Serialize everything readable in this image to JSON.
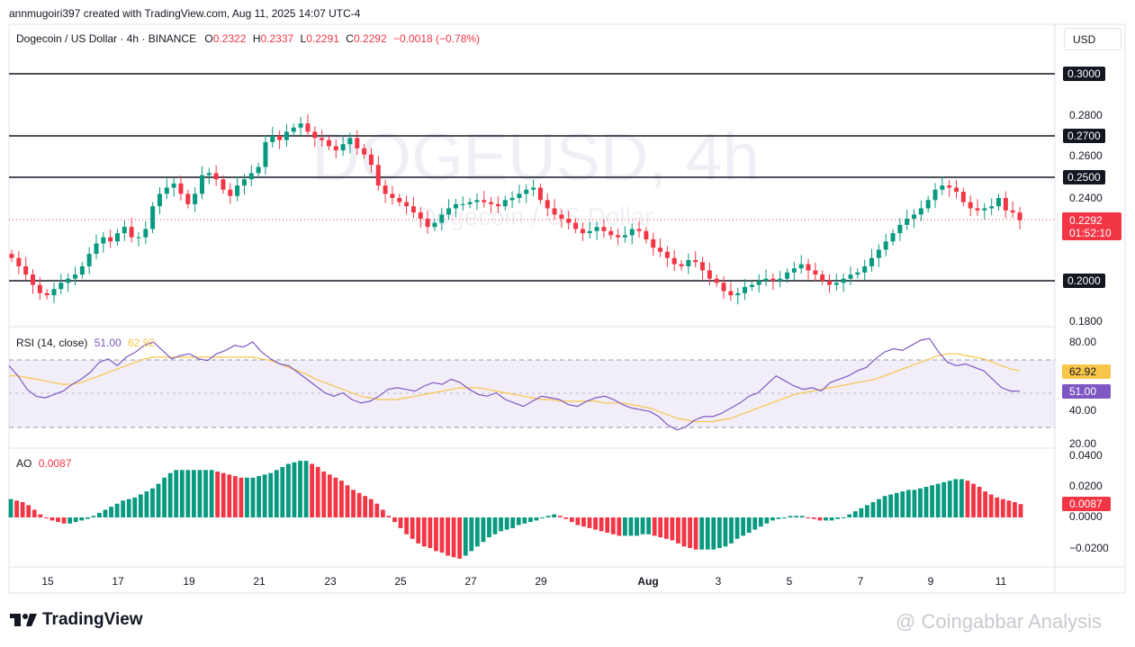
{
  "header": {
    "attribution": "annmugoiri397 created with TradingView.com, Aug 11, 2025 14:07 UTC-4",
    "symbol": "Dogecoin / US Dollar · 4h · BINANCE",
    "o_label": "O",
    "o_value": "0.2322",
    "h_label": "H",
    "h_value": "0.2337",
    "l_label": "L",
    "l_value": "0.2291",
    "c_label": "C",
    "c_value": "0.2292",
    "change": "−0.0018 (−0.78%)"
  },
  "currency_button": "USD",
  "watermark": {
    "big": "DOGEUSD, 4h",
    "small": "Dogecoin / US Dollar"
  },
  "price_axis": {
    "ticks": [
      "0.2800",
      "0.2600",
      "0.2400",
      "0.1800"
    ],
    "levels": [
      "0.3000",
      "0.2700",
      "0.2500",
      "0.2000"
    ],
    "last_price": "0.2292",
    "countdown": "01:52:10"
  },
  "rsi": {
    "label": "RSI (14, close)",
    "value": "51.00",
    "ma_value": "62.92",
    "ticks": [
      "80.00",
      "40.00",
      "20.00"
    ]
  },
  "ao": {
    "label": "AO",
    "value": "0.0087",
    "ticks": [
      "0.0400",
      "0.0200",
      "0.0000",
      "−0.0200"
    ]
  },
  "time_axis": [
    "15",
    "17",
    "19",
    "21",
    "23",
    "25",
    "27",
    "29",
    "Aug",
    "3",
    "5",
    "7",
    "9",
    "11"
  ],
  "branding": {
    "logo": "TradingView",
    "watermark_text": "@ Coingabbar Analysis"
  },
  "colors": {
    "up": "#089981",
    "down": "#f23645",
    "rsi_line": "#7e57c2",
    "rsi_ma": "#f7c548",
    "level_line": "#131722"
  },
  "chart_data": {
    "type": "candlestick",
    "price_levels": [
      0.3,
      0.27,
      0.25,
      0.2
    ],
    "price_range": [
      0.175,
      0.31
    ],
    "close_path": [
      0.211,
      0.207,
      0.203,
      0.198,
      0.194,
      0.193,
      0.196,
      0.199,
      0.201,
      0.203,
      0.207,
      0.213,
      0.218,
      0.221,
      0.219,
      0.223,
      0.226,
      0.221,
      0.221,
      0.225,
      0.236,
      0.242,
      0.245,
      0.247,
      0.242,
      0.237,
      0.242,
      0.251,
      0.252,
      0.249,
      0.244,
      0.241,
      0.246,
      0.249,
      0.252,
      0.255,
      0.267,
      0.27,
      0.268,
      0.272,
      0.274,
      0.276,
      0.272,
      0.269,
      0.268,
      0.265,
      0.263,
      0.266,
      0.269,
      0.264,
      0.261,
      0.256,
      0.246,
      0.242,
      0.24,
      0.238,
      0.236,
      0.233,
      0.23,
      0.226,
      0.228,
      0.232,
      0.235,
      0.237,
      0.237,
      0.238,
      0.239,
      0.238,
      0.237,
      0.236,
      0.239,
      0.24,
      0.242,
      0.244,
      0.245,
      0.239,
      0.235,
      0.232,
      0.23,
      0.228,
      0.225,
      0.223,
      0.224,
      0.226,
      0.224,
      0.222,
      0.221,
      0.222,
      0.225,
      0.224,
      0.22,
      0.216,
      0.214,
      0.211,
      0.208,
      0.207,
      0.21,
      0.209,
      0.205,
      0.201,
      0.199,
      0.195,
      0.193,
      0.194,
      0.197,
      0.198,
      0.2,
      0.201,
      0.2,
      0.201,
      0.204,
      0.206,
      0.208,
      0.205,
      0.203,
      0.2,
      0.198,
      0.199,
      0.201,
      0.203,
      0.204,
      0.207,
      0.211,
      0.215,
      0.219,
      0.223,
      0.227,
      0.23,
      0.232,
      0.235,
      0.239,
      0.244,
      0.246,
      0.245,
      0.243,
      0.238,
      0.235,
      0.234,
      0.235,
      0.236,
      0.24,
      0.234,
      0.233,
      0.2292
    ],
    "rsi_values": [
      66,
      60,
      52,
      48,
      47,
      49,
      51,
      55,
      58,
      62,
      68,
      70,
      66,
      71,
      74,
      78,
      80,
      75,
      70,
      72,
      73,
      70,
      69,
      73,
      75,
      78,
      77,
      80,
      74,
      70,
      67,
      66,
      62,
      58,
      54,
      50,
      48,
      50,
      46,
      44,
      45,
      48,
      52,
      53,
      52,
      51,
      54,
      56,
      55,
      58,
      56,
      52,
      49,
      48,
      50,
      46,
      44,
      42,
      45,
      48,
      47,
      46,
      43,
      42,
      45,
      47,
      48,
      46,
      43,
      41,
      40,
      39,
      36,
      31,
      28,
      30,
      34,
      36,
      36,
      38,
      41,
      44,
      48,
      50,
      55,
      60,
      57,
      54,
      52,
      53,
      51,
      56,
      58,
      60,
      63,
      65,
      70,
      74,
      76,
      75,
      78,
      81,
      82,
      74,
      68,
      66,
      67,
      65,
      63,
      58,
      53,
      51,
      51
    ],
    "rsi_ma_values": [
      60,
      60,
      59,
      58,
      57,
      56,
      55,
      55,
      56,
      58,
      60,
      62,
      64,
      66,
      68,
      70,
      71,
      71,
      71,
      71,
      71,
      71,
      71,
      71,
      71,
      71,
      71,
      71,
      70,
      69,
      67,
      65,
      63,
      61,
      58,
      56,
      54,
      52,
      50,
      48,
      47,
      46,
      46,
      46,
      47,
      48,
      49,
      50,
      51,
      52,
      53,
      53,
      53,
      52,
      51,
      50,
      49,
      48,
      47,
      46,
      46,
      45,
      45,
      45,
      45,
      45,
      44,
      44,
      44,
      43,
      42,
      41,
      39,
      37,
      35,
      34,
      33,
      33,
      33,
      34,
      35,
      37,
      39,
      41,
      43,
      45,
      47,
      49,
      50,
      51,
      52,
      53,
      54,
      55,
      56,
      57,
      58,
      60,
      62,
      64,
      66,
      68,
      70,
      72,
      73,
      73,
      72,
      71,
      70,
      68,
      66,
      64,
      62.92
    ],
    "rsi_bands": [
      70,
      50,
      30
    ],
    "ao_values": [
      0.012,
      0.011,
      0.01,
      0.008,
      0.005,
      0.002,
      0.0,
      -0.002,
      -0.003,
      -0.004,
      -0.004,
      -0.003,
      -0.002,
      -0.001,
      0.001,
      0.003,
      0.005,
      0.007,
      0.009,
      0.011,
      0.012,
      0.013,
      0.015,
      0.017,
      0.019,
      0.022,
      0.026,
      0.029,
      0.031,
      0.031,
      0.031,
      0.031,
      0.031,
      0.031,
      0.031,
      0.03,
      0.029,
      0.028,
      0.027,
      0.026,
      0.026,
      0.026,
      0.027,
      0.028,
      0.029,
      0.031,
      0.033,
      0.035,
      0.036,
      0.037,
      0.037,
      0.035,
      0.033,
      0.03,
      0.028,
      0.026,
      0.024,
      0.021,
      0.018,
      0.016,
      0.014,
      0.012,
      0.009,
      0.005,
      0.001,
      -0.003,
      -0.007,
      -0.011,
      -0.014,
      -0.017,
      -0.019,
      -0.02,
      -0.022,
      -0.023,
      -0.025,
      -0.026,
      -0.027,
      -0.025,
      -0.022,
      -0.019,
      -0.016,
      -0.013,
      -0.011,
      -0.009,
      -0.008,
      -0.007,
      -0.005,
      -0.004,
      -0.003,
      -0.002,
      0.0,
      0.001,
      0.002,
      0.001,
      -0.001,
      -0.003,
      -0.005,
      -0.006,
      -0.007,
      -0.008,
      -0.009,
      -0.01,
      -0.011,
      -0.012,
      -0.012,
      -0.012,
      -0.012,
      -0.011,
      -0.011,
      -0.012,
      -0.013,
      -0.014,
      -0.015,
      -0.017,
      -0.019,
      -0.02,
      -0.021,
      -0.021,
      -0.021,
      -0.021,
      -0.02,
      -0.019,
      -0.017,
      -0.014,
      -0.012,
      -0.01,
      -0.008,
      -0.006,
      -0.004,
      -0.002,
      -0.001,
      0.0,
      0.001,
      0.001,
      0.001,
      0.0,
      -0.001,
      -0.002,
      -0.002,
      -0.002,
      -0.001,
      0.0,
      0.002,
      0.004,
      0.006,
      0.008,
      0.01,
      0.012,
      0.014,
      0.015,
      0.016,
      0.017,
      0.018,
      0.018,
      0.019,
      0.02,
      0.021,
      0.022,
      0.023,
      0.024,
      0.025,
      0.025,
      0.024,
      0.022,
      0.02,
      0.017,
      0.015,
      0.013,
      0.012,
      0.011,
      0.01,
      0.0087
    ]
  }
}
